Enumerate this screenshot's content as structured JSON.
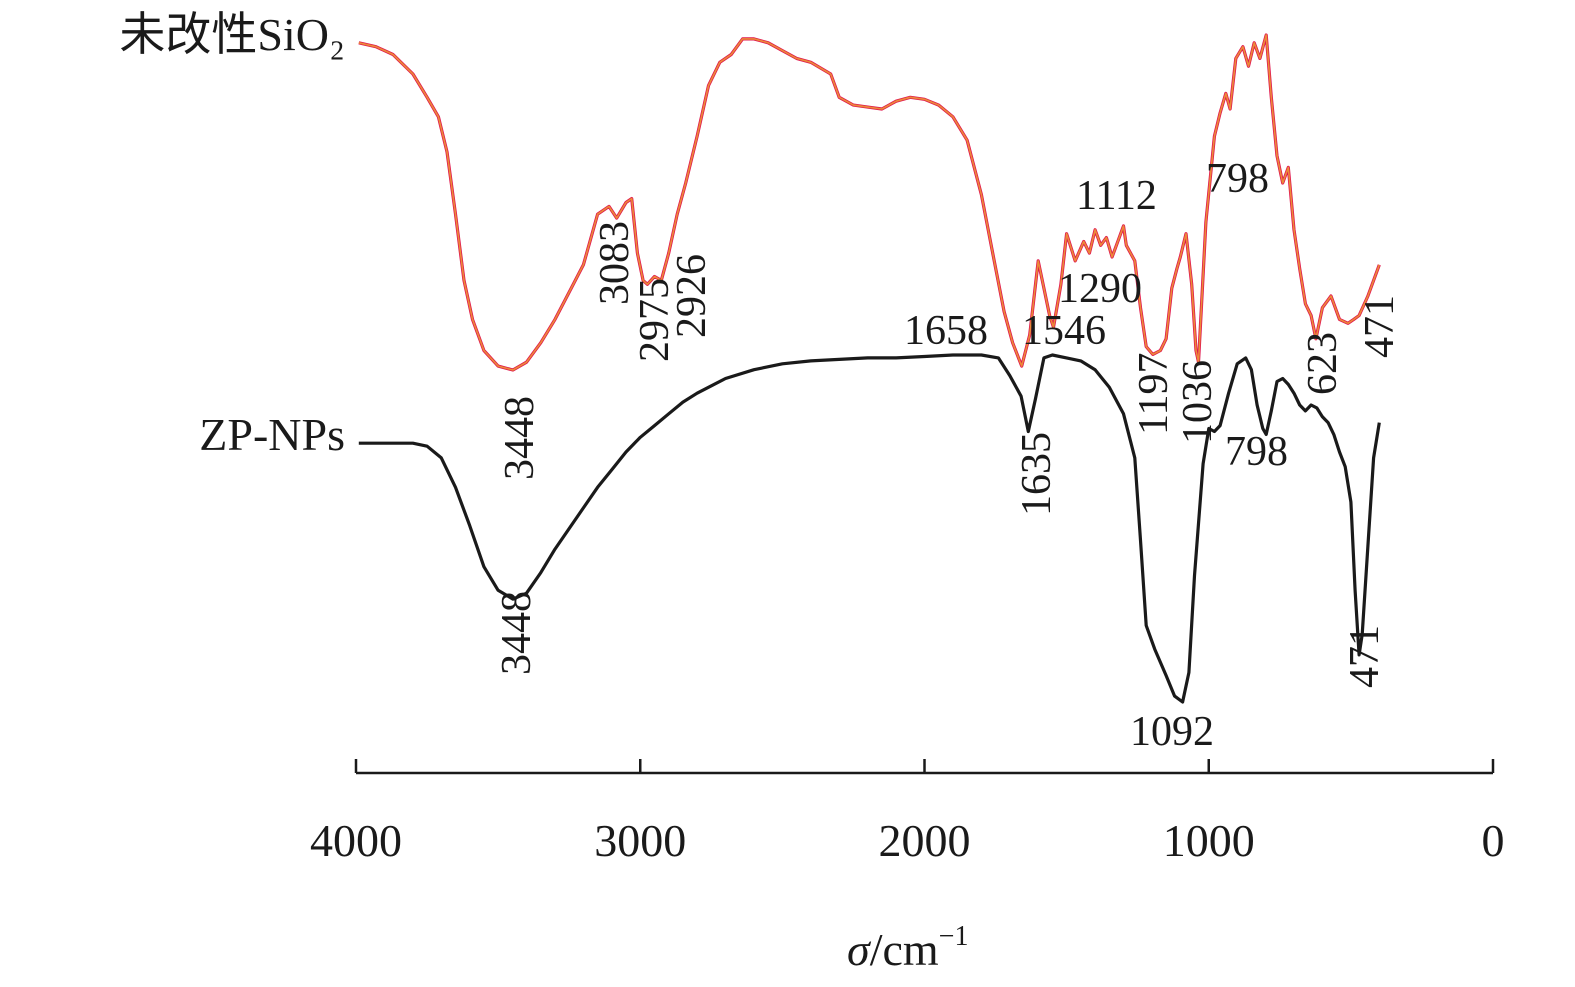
{
  "chart_data": {
    "type": "line",
    "xlabel": {
      "symbol": "σ",
      "unit": "/cm",
      "exponent": "−1"
    },
    "xlim": [
      4000,
      0
    ],
    "x_ticks": [
      4000,
      3000,
      2000,
      1000,
      0
    ],
    "x_tick_labels": [
      "4000",
      "3000",
      "2000",
      "1000",
      "0"
    ],
    "y_axis_shown": false,
    "grid": false,
    "series": [
      {
        "name": "未改性SiO₂",
        "color": "#e0194f",
        "color_alt": "#f0b030",
        "points": [
          [
            3990,
            0.74
          ],
          [
            3930,
            0.73
          ],
          [
            3870,
            0.71
          ],
          [
            3800,
            0.66
          ],
          [
            3750,
            0.6
          ],
          [
            3710,
            0.55
          ],
          [
            3680,
            0.46
          ],
          [
            3650,
            0.3
          ],
          [
            3620,
            0.13
          ],
          [
            3590,
            0.03
          ],
          [
            3550,
            -0.05
          ],
          [
            3500,
            -0.09
          ],
          [
            3448,
            -0.1
          ],
          [
            3400,
            -0.08
          ],
          [
            3350,
            -0.03
          ],
          [
            3300,
            0.03
          ],
          [
            3250,
            0.1
          ],
          [
            3200,
            0.17
          ],
          [
            3150,
            0.3
          ],
          [
            3110,
            0.32
          ],
          [
            3083,
            0.29
          ],
          [
            3050,
            0.33
          ],
          [
            3030,
            0.34
          ],
          [
            3010,
            0.2
          ],
          [
            2990,
            0.13
          ],
          [
            2975,
            0.12
          ],
          [
            2950,
            0.14
          ],
          [
            2926,
            0.13
          ],
          [
            2900,
            0.2
          ],
          [
            2870,
            0.3
          ],
          [
            2840,
            0.38
          ],
          [
            2800,
            0.5
          ],
          [
            2760,
            0.63
          ],
          [
            2720,
            0.69
          ],
          [
            2680,
            0.71
          ],
          [
            2640,
            0.75
          ],
          [
            2600,
            0.75
          ],
          [
            2550,
            0.74
          ],
          [
            2500,
            0.72
          ],
          [
            2450,
            0.7
          ],
          [
            2400,
            0.69
          ],
          [
            2330,
            0.66
          ],
          [
            2300,
            0.6
          ],
          [
            2250,
            0.58
          ],
          [
            2200,
            0.575
          ],
          [
            2150,
            0.57
          ],
          [
            2100,
            0.59
          ],
          [
            2050,
            0.6
          ],
          [
            2000,
            0.595
          ],
          [
            1950,
            0.58
          ],
          [
            1900,
            0.55
          ],
          [
            1850,
            0.49
          ],
          [
            1800,
            0.35
          ],
          [
            1760,
            0.2
          ],
          [
            1720,
            0.05
          ],
          [
            1690,
            -0.03
          ],
          [
            1658,
            -0.09
          ],
          [
            1630,
            -0.01
          ],
          [
            1600,
            0.18
          ],
          [
            1580,
            0.11
          ],
          [
            1560,
            0.04
          ],
          [
            1546,
            0.01
          ],
          [
            1520,
            0.12
          ],
          [
            1500,
            0.25
          ],
          [
            1470,
            0.18
          ],
          [
            1440,
            0.23
          ],
          [
            1420,
            0.2
          ],
          [
            1400,
            0.26
          ],
          [
            1380,
            0.22
          ],
          [
            1360,
            0.24
          ],
          [
            1340,
            0.19
          ],
          [
            1320,
            0.23
          ],
          [
            1300,
            0.27
          ],
          [
            1290,
            0.22
          ],
          [
            1260,
            0.18
          ],
          [
            1240,
            0.06
          ],
          [
            1220,
            -0.04
          ],
          [
            1197,
            -0.06
          ],
          [
            1170,
            -0.05
          ],
          [
            1150,
            -0.02
          ],
          [
            1130,
            0.11
          ],
          [
            1112,
            0.16
          ],
          [
            1100,
            0.19
          ],
          [
            1080,
            0.25
          ],
          [
            1060,
            0.12
          ],
          [
            1045,
            -0.05
          ],
          [
            1036,
            -0.08
          ],
          [
            1010,
            0.28
          ],
          [
            980,
            0.5
          ],
          [
            960,
            0.56
          ],
          [
            940,
            0.61
          ],
          [
            925,
            0.57
          ],
          [
            905,
            0.7
          ],
          [
            880,
            0.73
          ],
          [
            860,
            0.68
          ],
          [
            840,
            0.74
          ],
          [
            820,
            0.7
          ],
          [
            798,
            0.76
          ],
          [
            780,
            0.6
          ],
          [
            760,
            0.45
          ],
          [
            740,
            0.38
          ],
          [
            720,
            0.42
          ],
          [
            700,
            0.26
          ],
          [
            680,
            0.16
          ],
          [
            660,
            0.07
          ],
          [
            640,
            0.04
          ],
          [
            623,
            -0.02
          ],
          [
            600,
            0.06
          ],
          [
            570,
            0.09
          ],
          [
            540,
            0.03
          ],
          [
            510,
            0.02
          ],
          [
            490,
            0.03
          ],
          [
            471,
            0.04
          ],
          [
            440,
            0.09
          ],
          [
            400,
            0.17
          ]
        ],
        "peak_labels": [
          "3448",
          "3083",
          "2975",
          "2926",
          "1658",
          "1546",
          "1290",
          "1112",
          "1197",
          "1036",
          "798",
          "623",
          "471"
        ]
      },
      {
        "name": "ZP-NPs",
        "color": "#1a1a1a",
        "points": [
          [
            3990,
            -0.05
          ],
          [
            3900,
            -0.05
          ],
          [
            3800,
            -0.05
          ],
          [
            3750,
            -0.06
          ],
          [
            3700,
            -0.1
          ],
          [
            3650,
            -0.2
          ],
          [
            3600,
            -0.33
          ],
          [
            3550,
            -0.47
          ],
          [
            3500,
            -0.55
          ],
          [
            3448,
            -0.58
          ],
          [
            3400,
            -0.56
          ],
          [
            3350,
            -0.49
          ],
          [
            3300,
            -0.41
          ],
          [
            3250,
            -0.34
          ],
          [
            3200,
            -0.27
          ],
          [
            3150,
            -0.2
          ],
          [
            3100,
            -0.14
          ],
          [
            3050,
            -0.08
          ],
          [
            3000,
            -0.03
          ],
          [
            2950,
            0.01
          ],
          [
            2900,
            0.05
          ],
          [
            2850,
            0.09
          ],
          [
            2800,
            0.12
          ],
          [
            2700,
            0.17
          ],
          [
            2600,
            0.2
          ],
          [
            2500,
            0.22
          ],
          [
            2400,
            0.23
          ],
          [
            2300,
            0.235
          ],
          [
            2200,
            0.24
          ],
          [
            2100,
            0.24
          ],
          [
            2000,
            0.245
          ],
          [
            1900,
            0.25
          ],
          [
            1800,
            0.25
          ],
          [
            1740,
            0.24
          ],
          [
            1700,
            0.18
          ],
          [
            1660,
            0.11
          ],
          [
            1635,
            -0.01
          ],
          [
            1610,
            0.1
          ],
          [
            1580,
            0.24
          ],
          [
            1550,
            0.25
          ],
          [
            1500,
            0.24
          ],
          [
            1450,
            0.23
          ],
          [
            1400,
            0.2
          ],
          [
            1350,
            0.14
          ],
          [
            1300,
            0.05
          ],
          [
            1260,
            -0.1
          ],
          [
            1240,
            -0.38
          ],
          [
            1220,
            -0.67
          ],
          [
            1190,
            -0.75
          ],
          [
            1150,
            -0.84
          ],
          [
            1120,
            -0.91
          ],
          [
            1092,
            -0.93
          ],
          [
            1070,
            -0.83
          ],
          [
            1050,
            -0.5
          ],
          [
            1020,
            -0.12
          ],
          [
            1000,
            0.0
          ],
          [
            980,
            -0.01
          ],
          [
            960,
            0.01
          ],
          [
            930,
            0.12
          ],
          [
            900,
            0.22
          ],
          [
            870,
            0.24
          ],
          [
            850,
            0.2
          ],
          [
            830,
            0.08
          ],
          [
            810,
            0.0
          ],
          [
            798,
            -0.02
          ],
          [
            780,
            0.06
          ],
          [
            760,
            0.16
          ],
          [
            740,
            0.17
          ],
          [
            720,
            0.15
          ],
          [
            700,
            0.12
          ],
          [
            680,
            0.08
          ],
          [
            660,
            0.06
          ],
          [
            640,
            0.08
          ],
          [
            620,
            0.07
          ],
          [
            600,
            0.04
          ],
          [
            580,
            0.02
          ],
          [
            560,
            -0.02
          ],
          [
            540,
            -0.08
          ],
          [
            520,
            -0.13
          ],
          [
            500,
            -0.25
          ],
          [
            485,
            -0.55
          ],
          [
            471,
            -0.77
          ],
          [
            460,
            -0.7
          ],
          [
            440,
            -0.4
          ],
          [
            420,
            -0.1
          ],
          [
            400,
            0.02
          ]
        ],
        "peak_labels": [
          "3448",
          "1635",
          "1092",
          "798",
          "471"
        ]
      }
    ]
  }
}
